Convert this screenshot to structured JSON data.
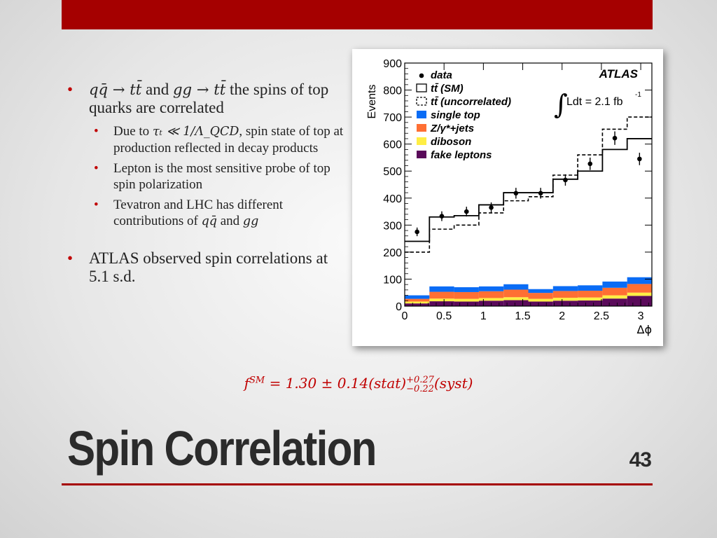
{
  "slide": {
    "title": "Spin Correlation",
    "page_number": "43",
    "accent_color": "#a50000"
  },
  "bullets": [
    {
      "math_a": "qq̄ → tt̄",
      "and": " and ",
      "math_b": "gg → tt̄",
      "text": " the spins of top quarks are correlated"
    },
    {
      "sub": [
        {
          "pre": "Due to ",
          "math": "τₜ ≪ 1/Λ_QCD",
          "post": ", spin state of top at production reflected in decay products"
        },
        {
          "text": "Lepton is the most sensitive probe of top spin polarization"
        },
        {
          "pre": "Tevatron and LHC has different contributions of ",
          "math_a": "qq̄",
          "and": " and ",
          "math_b": "gg"
        }
      ]
    },
    {
      "text": "ATLAS observed spin correlations at 5.1 s.d."
    }
  ],
  "equation": {
    "lhs": "f",
    "lhs_sup": "SM",
    "rhs": " = 1.30 ± 0.14(stat)",
    "up": "+0.27",
    "down": "−0.22",
    "tail": "(syst)"
  },
  "chart_data": {
    "type": "bar",
    "experiment_label": "ATLAS",
    "lumi_label": "Ldt = 2.1 fb",
    "lumi_sup": "-1",
    "ylabel": "Events",
    "xlabel": "Δϕ",
    "xlim": [
      0,
      3.1416
    ],
    "ylim": [
      0,
      900
    ],
    "x_ticks": [
      "0",
      "0.5",
      "1",
      "1.5",
      "2",
      "2.5",
      "3"
    ],
    "y_ticks": [
      "0",
      "100",
      "200",
      "300",
      "400",
      "500",
      "600",
      "700",
      "800",
      "900"
    ],
    "legend_placement": "top-left",
    "legend": [
      "data",
      "tt̄ (SM)",
      "tt̄ (uncorrelated)",
      "single top",
      "Z/γ*+jets",
      "diboson",
      "fake leptons"
    ],
    "bin_edges": [
      0,
      0.3142,
      0.6283,
      0.9425,
      1.2566,
      1.5708,
      1.885,
      2.1991,
      2.5133,
      2.8274,
      3.1416
    ],
    "data_points": [
      275,
      333,
      350,
      365,
      418,
      418,
      467,
      527,
      622,
      545
    ],
    "data_errors": [
      16,
      18,
      18,
      19,
      20,
      20,
      21,
      23,
      25,
      23
    ],
    "tt_sm": [
      240,
      330,
      335,
      375,
      420,
      420,
      470,
      500,
      580,
      620
    ],
    "tt_uncorrelated": [
      200,
      285,
      300,
      345,
      390,
      405,
      485,
      560,
      655,
      700
    ],
    "stack_series": [
      {
        "name": "fake leptons",
        "color": "#5a0a5a",
        "values": [
          10,
          18,
          17,
          20,
          22,
          17,
          20,
          21,
          28,
          38
        ]
      },
      {
        "name": "diboson",
        "color": "#ffee44",
        "values": [
          7,
          10,
          10,
          10,
          11,
          10,
          11,
          11,
          12,
          12
        ]
      },
      {
        "name": "Z/γ*+jets",
        "color": "#ff6f33",
        "values": [
          10,
          25,
          25,
          25,
          28,
          22,
          25,
          25,
          28,
          32
        ]
      },
      {
        "name": "single top",
        "color": "#0a6cf5",
        "values": [
          13,
          20,
          18,
          18,
          20,
          14,
          18,
          20,
          23,
          25
        ]
      }
    ]
  }
}
